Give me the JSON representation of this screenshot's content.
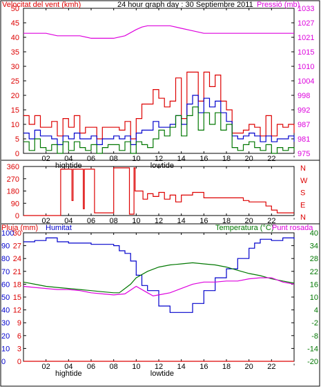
{
  "header": {
    "left_label": "Velocitat del vent (kmh)",
    "title": "24 hour graph day : 30 Septiembre 2011",
    "right_label": "Pressió (mb)"
  },
  "bottom_header": {
    "rain_label": "Pluja (mm)",
    "humidity_label": "Humitat",
    "temp_label": "Temperatura (°C)",
    "dew_label": "Punt rosada"
  },
  "tide_labels": [
    "hightide",
    "lowtide"
  ],
  "colors": {
    "wind_avg": "#0000cc",
    "wind_gust": "#dd0000",
    "wind_min": "#007700",
    "pressure": "#dd00dd",
    "direction": "#dd0000",
    "humidity": "#0000cc",
    "temperature": "#007700",
    "dew_point": "#dd00dd",
    "rain": "#dd0000",
    "frame": "#000000"
  },
  "chart_data": [
    {
      "type": "line",
      "id": "wind_pressure",
      "x_ticks": [
        "02",
        "04",
        "06",
        "08",
        "10",
        "12",
        "14",
        "16",
        "18",
        "20",
        "22",
        "'"
      ],
      "xlim": [
        0,
        24
      ],
      "y_left_ticks": [
        0,
        5,
        10,
        15,
        20,
        25,
        30,
        35,
        40,
        45,
        50
      ],
      "y_left_range": [
        0,
        50
      ],
      "y_right_ticks": [
        975,
        981,
        987,
        992,
        998,
        1004,
        1010,
        1015,
        1021,
        1027,
        1033
      ],
      "y_right_range": [
        975,
        1033
      ],
      "series": [
        {
          "key": "pressure",
          "axis": "right",
          "x": [
            0,
            1,
            2,
            3,
            4,
            5,
            6,
            7,
            8,
            9,
            10,
            10.5,
            11,
            12,
            13,
            14,
            15,
            16,
            17,
            18,
            19,
            20,
            21,
            22,
            23,
            24
          ],
          "y": [
            1023,
            1023,
            1023,
            1022,
            1022,
            1022,
            1021,
            1021,
            1021,
            1022,
            1024.5,
            1025.5,
            1026,
            1026,
            1026,
            1025,
            1024,
            1023,
            1023,
            1023,
            1023,
            1023,
            1023,
            1023,
            1023,
            1023
          ]
        },
        {
          "key": "gust",
          "axis": "left",
          "x": [
            0,
            0.5,
            1,
            1.5,
            2,
            2.5,
            3,
            3.5,
            4,
            4.5,
            5,
            5.5,
            6,
            6.5,
            7,
            7.5,
            8,
            8.5,
            9,
            9.5,
            10,
            10.5,
            11,
            11.5,
            12,
            12.5,
            13,
            13.5,
            14,
            14.5,
            15,
            15.5,
            16,
            16.5,
            17,
            17.5,
            18,
            18.5,
            19,
            19.5,
            20,
            20.5,
            21,
            21.5,
            22,
            22.5,
            23,
            23.5,
            24
          ],
          "y": [
            13,
            10,
            13,
            9,
            9,
            11,
            6,
            12,
            9,
            13,
            7,
            9,
            9,
            5,
            9,
            9,
            9,
            8,
            11,
            5,
            12,
            17,
            17,
            22,
            19,
            16,
            18,
            26,
            12,
            28,
            28,
            18,
            28,
            23,
            27,
            18,
            15,
            7,
            7,
            8,
            10,
            9,
            6,
            13,
            6,
            10,
            9,
            10,
            7
          ]
        },
        {
          "key": "avg",
          "axis": "left",
          "x": [
            0,
            0.5,
            1,
            1.5,
            2,
            2.5,
            3,
            3.5,
            4,
            4.5,
            5,
            5.5,
            6,
            6.5,
            7,
            7.5,
            8,
            8.5,
            9,
            9.5,
            10,
            10.5,
            11,
            11.5,
            12,
            12.5,
            13,
            13.5,
            14,
            14.5,
            15,
            15.5,
            16,
            16.5,
            17,
            17.5,
            18,
            18.5,
            19,
            19.5,
            20,
            20.5,
            21,
            21.5,
            22,
            22.5,
            23,
            23.5,
            24
          ],
          "y": [
            7,
            5,
            8,
            6,
            6,
            5,
            3,
            6,
            5,
            7,
            5,
            5,
            6,
            3,
            5,
            5,
            6,
            5,
            6,
            3,
            7,
            8,
            8,
            11,
            9,
            9,
            10,
            13,
            10,
            17,
            20,
            14,
            19,
            16,
            18,
            14,
            11,
            6,
            5,
            6,
            7,
            6,
            4,
            6,
            4,
            5,
            5,
            6,
            4
          ]
        },
        {
          "key": "min",
          "axis": "left",
          "x": [
            0,
            0.5,
            1,
            1.5,
            2,
            2.5,
            3,
            3.5,
            4,
            4.5,
            5,
            5.5,
            6,
            6.5,
            7,
            7.5,
            8,
            8.5,
            9,
            9.5,
            10,
            10.5,
            11,
            11.5,
            12,
            12.5,
            13,
            13.5,
            14,
            14.5,
            15,
            15.5,
            16,
            16.5,
            17,
            17.5,
            18,
            18.5,
            19,
            19.5,
            20,
            20.5,
            21,
            21.5,
            22,
            22.5,
            23,
            23.5,
            24
          ],
          "y": [
            4,
            1,
            5,
            2,
            1,
            3,
            0,
            4,
            1,
            4,
            2,
            1,
            3,
            0,
            2,
            3,
            3,
            1,
            4,
            0,
            4,
            3,
            2,
            5,
            8,
            6,
            9,
            13,
            6,
            13,
            16,
            8,
            14,
            10,
            14,
            8,
            10,
            2,
            1,
            3,
            4,
            2,
            1,
            3,
            0,
            2,
            1,
            2,
            1
          ]
        }
      ]
    },
    {
      "type": "line",
      "id": "wind_direction",
      "x_ticks": [
        "02",
        "04",
        "06",
        "08",
        "10",
        "12",
        "14",
        "16",
        "18",
        "20",
        "22",
        "'"
      ],
      "xlim": [
        0,
        24
      ],
      "y_ticks": [
        0,
        90,
        180,
        270,
        360
      ],
      "y_range": [
        0,
        360
      ],
      "compass_labels": [
        "N",
        "W",
        "S",
        "E",
        "N"
      ],
      "series": [
        {
          "key": "direction",
          "x": [
            0,
            3.2,
            3.3,
            4,
            4.3,
            4.4,
            5,
            5.3,
            5.4,
            6.2,
            6.3,
            8,
            8.2,
            9.3,
            9.4,
            9.8,
            9.9,
            10.5,
            10.6,
            11,
            11.5,
            12,
            12.5,
            13,
            13.5,
            14,
            15,
            16,
            17,
            18,
            19,
            19.5,
            20,
            21,
            21.5,
            22,
            22.5,
            23,
            24
          ],
          "y": [
            0,
            0,
            340,
            340,
            110,
            340,
            340,
            50,
            340,
            340,
            20,
            350,
            350,
            350,
            10,
            350,
            180,
            180,
            120,
            160,
            140,
            170,
            120,
            150,
            100,
            150,
            170,
            130,
            130,
            130,
            130,
            110,
            100,
            100,
            70,
            40,
            20,
            20,
            20
          ]
        }
      ]
    },
    {
      "type": "line",
      "id": "temp_humidity",
      "x_ticks": [
        "02",
        "04",
        "06",
        "08",
        "10",
        "12",
        "14",
        "16",
        "18",
        "20",
        "22",
        "'"
      ],
      "xlim": [
        0,
        24
      ],
      "y_humidity_ticks": [
        0,
        10,
        20,
        30,
        40,
        50,
        60,
        70,
        80,
        90,
        100
      ],
      "y_rain_ticks": [
        0,
        3,
        6,
        9,
        12,
        15,
        18,
        21,
        24,
        27,
        30
      ],
      "y_temp_ticks": [
        -20,
        -14,
        -8,
        -2,
        4,
        10,
        16,
        22,
        28,
        34,
        40
      ],
      "humidity_range": [
        0,
        100
      ],
      "temp_range": [
        -20,
        40
      ],
      "series": [
        {
          "key": "humidity",
          "x": [
            0,
            1,
            2,
            3,
            4,
            5,
            6,
            7,
            8,
            8.5,
            9,
            9.5,
            10,
            10.5,
            11,
            12,
            13,
            13.5,
            14,
            15,
            16,
            17,
            18,
            19,
            20,
            20.5,
            21,
            21.5,
            22,
            23,
            24
          ],
          "y": [
            93,
            94,
            96,
            93,
            92,
            92,
            91,
            91,
            90,
            86,
            84,
            78,
            67,
            59,
            55,
            43,
            38,
            38,
            38,
            45,
            55,
            65,
            72,
            80,
            88,
            92,
            95,
            95,
            94,
            96,
            95
          ]
        },
        {
          "key": "temperature",
          "x": [
            0,
            1,
            2,
            3,
            4,
            5,
            6,
            7,
            8,
            8.5,
            9,
            9.5,
            10,
            11,
            12,
            13,
            14,
            15,
            16,
            17,
            18,
            19,
            20,
            21,
            22,
            23,
            24
          ],
          "y": [
            17,
            16,
            15,
            14.5,
            14,
            13.5,
            13,
            12.5,
            12,
            12,
            14,
            16,
            19,
            22,
            24,
            25,
            25.5,
            26,
            25.5,
            25,
            24,
            22.5,
            21,
            20,
            18.5,
            17.5,
            16.5
          ]
        },
        {
          "key": "dew_point",
          "x": [
            0,
            1,
            2,
            3,
            4,
            5,
            6,
            7,
            8,
            9,
            10,
            11,
            11.5,
            12,
            13,
            14,
            15,
            16,
            17,
            18,
            19,
            20,
            21,
            22,
            23,
            24
          ],
          "y": [
            15,
            14.5,
            14,
            13.5,
            13.5,
            13,
            12,
            11.5,
            11,
            11.5,
            15,
            12,
            10.5,
            11,
            12,
            14,
            16,
            17,
            17,
            17.5,
            17.5,
            18.5,
            19,
            19,
            17,
            16
          ]
        },
        {
          "key": "rain",
          "x": [
            0,
            24
          ],
          "y": [
            0,
            0
          ]
        }
      ]
    }
  ]
}
